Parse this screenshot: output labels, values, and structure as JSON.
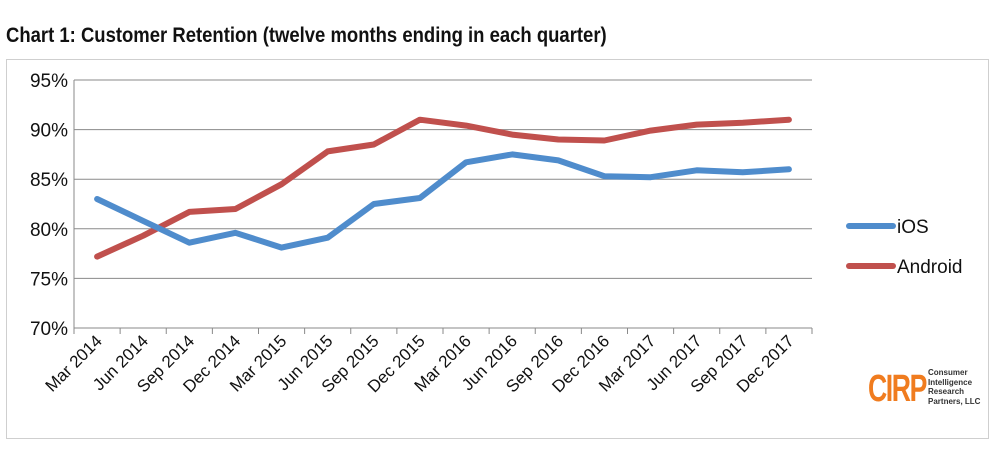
{
  "chart_data": {
    "type": "line",
    "title": "Chart 1: Customer Retention (twelve months ending in each quarter)",
    "categories": [
      "Mar 2014",
      "Jun 2014",
      "Sep 2014",
      "Dec 2014",
      "Mar 2015",
      "Jun 2015",
      "Sep 2015",
      "Dec 2015",
      "Mar 2016",
      "Jun 2016",
      "Sep 2016",
      "Dec 2016",
      "Mar 2017",
      "Jun 2017",
      "Sep 2017",
      "Dec 2017"
    ],
    "series": [
      {
        "name": "iOS",
        "color": "#4f8ccc",
        "values": [
          83,
          80.8,
          78.6,
          79.6,
          78.1,
          79.1,
          82.5,
          83.1,
          86.7,
          87.5,
          86.9,
          85.3,
          85.2,
          85.9,
          85.7,
          86
        ]
      },
      {
        "name": "Android",
        "color": "#c0504d",
        "values": [
          77.2,
          79.3,
          81.7,
          82,
          84.5,
          87.8,
          88.5,
          91,
          90.4,
          89.5,
          89,
          88.9,
          89.9,
          90.5,
          90.7,
          91
        ]
      }
    ],
    "ylim": [
      70,
      95
    ],
    "yticks": [
      "70%",
      "75%",
      "80%",
      "85%",
      "90%",
      "95%"
    ],
    "ytick_values": [
      70,
      75,
      80,
      85,
      90,
      95
    ],
    "grid": true,
    "legend": "right"
  },
  "logo": {
    "mark": "CIRP",
    "text": [
      "Consumer",
      "Intelligence",
      "Research",
      "Partners, LLC"
    ]
  }
}
